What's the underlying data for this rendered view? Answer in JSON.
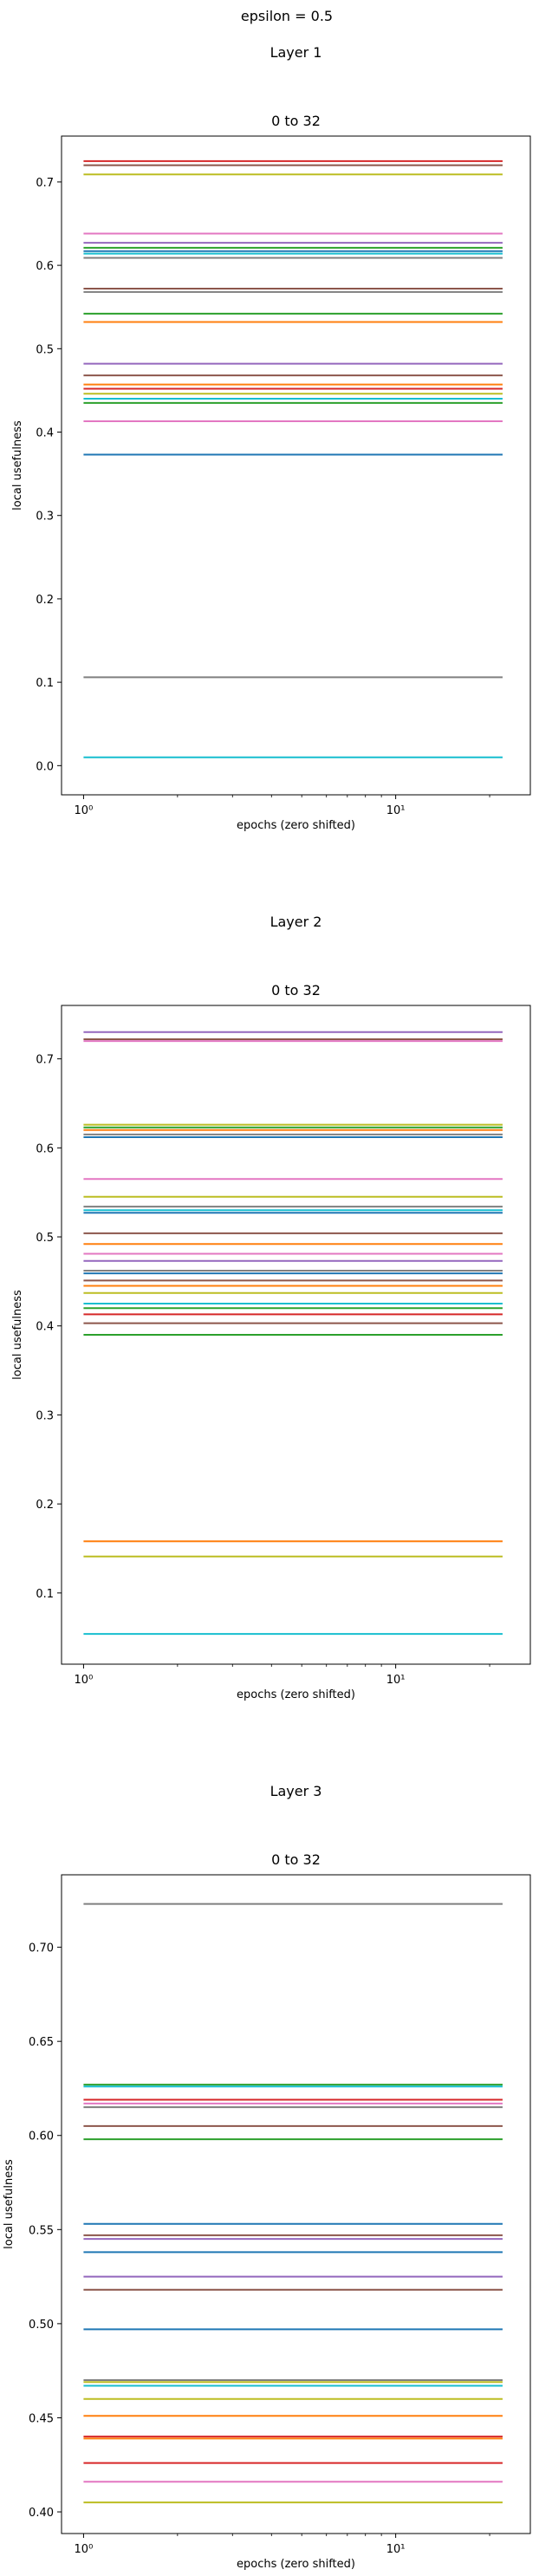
{
  "figure": {
    "suptitle": "epsilon = 0.5"
  },
  "chart_data": [
    {
      "type": "line",
      "panel_title": "Layer 1",
      "title": "0 to 32",
      "xlabel": "epochs (zero shifted)",
      "ylabel": "local usefulness",
      "x_scale": "log",
      "xlim": [
        0.85,
        27
      ],
      "xticks": [
        1,
        10
      ],
      "xtick_labels": [
        "10⁰",
        "10¹"
      ],
      "x": [
        1,
        22
      ],
      "ylim": [
        -0.035,
        0.755
      ],
      "yticks": [
        0.0,
        0.1,
        0.2,
        0.3,
        0.4,
        0.5,
        0.6,
        0.7
      ],
      "ytick_labels": [
        "0.0",
        "0.1",
        "0.2",
        "0.3",
        "0.4",
        "0.5",
        "0.6",
        "0.7"
      ],
      "grid": false,
      "legend": "none",
      "series": [
        {
          "values": [
            0.725,
            0.725
          ],
          "color": "#d62728"
        },
        {
          "values": [
            0.72,
            0.72
          ],
          "color": "#8c564b"
        },
        {
          "values": [
            0.709,
            0.709
          ],
          "color": "#bcbd22"
        },
        {
          "values": [
            0.638,
            0.638
          ],
          "color": "#e377c2"
        },
        {
          "values": [
            0.627,
            0.627
          ],
          "color": "#9467bd"
        },
        {
          "values": [
            0.621,
            0.621
          ],
          "color": "#2ca02c"
        },
        {
          "values": [
            0.617,
            0.617
          ],
          "color": "#1f77b4"
        },
        {
          "values": [
            0.614,
            0.614
          ],
          "color": "#17becf"
        },
        {
          "values": [
            0.609,
            0.609
          ],
          "color": "#7f7f7f"
        },
        {
          "values": [
            0.572,
            0.572
          ],
          "color": "#8c564b"
        },
        {
          "values": [
            0.568,
            0.568
          ],
          "color": "#7f7f7f"
        },
        {
          "values": [
            0.542,
            0.542
          ],
          "color": "#2ca02c"
        },
        {
          "values": [
            0.532,
            0.532
          ],
          "color": "#ff7f0e"
        },
        {
          "values": [
            0.482,
            0.482
          ],
          "color": "#9467bd"
        },
        {
          "values": [
            0.468,
            0.468
          ],
          "color": "#8c564b"
        },
        {
          "values": [
            0.457,
            0.457
          ],
          "color": "#ff7f0e"
        },
        {
          "values": [
            0.452,
            0.452
          ],
          "color": "#d62728"
        },
        {
          "values": [
            0.446,
            0.446
          ],
          "color": "#bcbd22"
        },
        {
          "values": [
            0.44,
            0.44
          ],
          "color": "#17becf"
        },
        {
          "values": [
            0.435,
            0.435
          ],
          "color": "#2ca02c"
        },
        {
          "values": [
            0.413,
            0.413
          ],
          "color": "#e377c2"
        },
        {
          "values": [
            0.373,
            0.373
          ],
          "color": "#1f77b4"
        },
        {
          "values": [
            0.106,
            0.106
          ],
          "color": "#7f7f7f"
        },
        {
          "values": [
            0.01,
            0.01
          ],
          "color": "#17becf"
        }
      ]
    },
    {
      "type": "line",
      "panel_title": "Layer 2",
      "title": "0 to 32",
      "xlabel": "epochs (zero shifted)",
      "ylabel": "local usefulness",
      "x_scale": "log",
      "xlim": [
        0.85,
        27
      ],
      "xticks": [
        1,
        10
      ],
      "xtick_labels": [
        "10⁰",
        "10¹"
      ],
      "x": [
        1,
        22
      ],
      "ylim": [
        0.02,
        0.76
      ],
      "yticks": [
        0.1,
        0.2,
        0.3,
        0.4,
        0.5,
        0.6,
        0.7
      ],
      "ytick_labels": [
        "0.1",
        "0.2",
        "0.3",
        "0.4",
        "0.5",
        "0.6",
        "0.7"
      ],
      "grid": false,
      "legend": "none",
      "series": [
        {
          "values": [
            0.73,
            0.73
          ],
          "color": "#9467bd"
        },
        {
          "values": [
            0.722,
            0.722
          ],
          "color": "#8c564b"
        },
        {
          "values": [
            0.72,
            0.72
          ],
          "color": "#e377c2"
        },
        {
          "values": [
            0.626,
            0.626
          ],
          "color": "#bcbd22"
        },
        {
          "values": [
            0.623,
            0.623
          ],
          "color": "#2ca02c"
        },
        {
          "values": [
            0.62,
            0.62
          ],
          "color": "#ff7f0e"
        },
        {
          "values": [
            0.615,
            0.615
          ],
          "color": "#7f7f7f"
        },
        {
          "values": [
            0.612,
            0.612
          ],
          "color": "#1f77b4"
        },
        {
          "values": [
            0.565,
            0.565
          ],
          "color": "#e377c2"
        },
        {
          "values": [
            0.545,
            0.545
          ],
          "color": "#bcbd22"
        },
        {
          "values": [
            0.534,
            0.534
          ],
          "color": "#7f7f7f"
        },
        {
          "values": [
            0.53,
            0.53
          ],
          "color": "#17becf"
        },
        {
          "values": [
            0.527,
            0.527
          ],
          "color": "#1f77b4"
        },
        {
          "values": [
            0.504,
            0.504
          ],
          "color": "#8c564b"
        },
        {
          "values": [
            0.492,
            0.492
          ],
          "color": "#ff7f0e"
        },
        {
          "values": [
            0.481,
            0.481
          ],
          "color": "#e377c2"
        },
        {
          "values": [
            0.473,
            0.473
          ],
          "color": "#9467bd"
        },
        {
          "values": [
            0.462,
            0.462
          ],
          "color": "#7f7f7f"
        },
        {
          "values": [
            0.459,
            0.459
          ],
          "color": "#1f77b4"
        },
        {
          "values": [
            0.451,
            0.451
          ],
          "color": "#8c564b"
        },
        {
          "values": [
            0.445,
            0.445
          ],
          "color": "#ff7f0e"
        },
        {
          "values": [
            0.437,
            0.437
          ],
          "color": "#bcbd22"
        },
        {
          "values": [
            0.425,
            0.425
          ],
          "color": "#17becf"
        },
        {
          "values": [
            0.42,
            0.42
          ],
          "color": "#2ca02c"
        },
        {
          "values": [
            0.413,
            0.413
          ],
          "color": "#d62728"
        },
        {
          "values": [
            0.403,
            0.403
          ],
          "color": "#8c564b"
        },
        {
          "values": [
            0.39,
            0.39
          ],
          "color": "#2ca02c"
        },
        {
          "values": [
            0.158,
            0.158
          ],
          "color": "#ff7f0e"
        },
        {
          "values": [
            0.141,
            0.141
          ],
          "color": "#bcbd22"
        },
        {
          "values": [
            0.054,
            0.054
          ],
          "color": "#17becf"
        }
      ]
    },
    {
      "type": "line",
      "panel_title": "Layer 3",
      "title": "0 to 32",
      "xlabel": "epochs (zero shifted)",
      "ylabel": "local usefulness",
      "x_scale": "log",
      "xlim": [
        0.85,
        27
      ],
      "xticks": [
        1,
        10
      ],
      "xtick_labels": [
        "10⁰",
        "10¹"
      ],
      "x": [
        1,
        22
      ],
      "ylim": [
        0.3885,
        0.7385
      ],
      "yticks": [
        0.4,
        0.45,
        0.5,
        0.55,
        0.6,
        0.65,
        0.7
      ],
      "ytick_labels": [
        "0.40",
        "0.45",
        "0.50",
        "0.55",
        "0.60",
        "0.65",
        "0.70"
      ],
      "grid": false,
      "legend": "none",
      "series": [
        {
          "values": [
            0.723,
            0.723
          ],
          "color": "#7f7f7f"
        },
        {
          "values": [
            0.627,
            0.627
          ],
          "color": "#2ca02c"
        },
        {
          "values": [
            0.626,
            0.626
          ],
          "color": "#17becf"
        },
        {
          "values": [
            0.619,
            0.619
          ],
          "color": "#d62728"
        },
        {
          "values": [
            0.617,
            0.617
          ],
          "color": "#e377c2"
        },
        {
          "values": [
            0.615,
            0.615
          ],
          "color": "#7f7f7f"
        },
        {
          "values": [
            0.605,
            0.605
          ],
          "color": "#8c564b"
        },
        {
          "values": [
            0.598,
            0.598
          ],
          "color": "#2ca02c"
        },
        {
          "values": [
            0.553,
            0.553
          ],
          "color": "#1f77b4"
        },
        {
          "values": [
            0.547,
            0.547
          ],
          "color": "#8c564b"
        },
        {
          "values": [
            0.545,
            0.545
          ],
          "color": "#9467bd"
        },
        {
          "values": [
            0.538,
            0.538
          ],
          "color": "#1f77b4"
        },
        {
          "values": [
            0.525,
            0.525
          ],
          "color": "#9467bd"
        },
        {
          "values": [
            0.518,
            0.518
          ],
          "color": "#8c564b"
        },
        {
          "values": [
            0.497,
            0.497
          ],
          "color": "#1f77b4"
        },
        {
          "values": [
            0.47,
            0.47
          ],
          "color": "#7f7f7f"
        },
        {
          "values": [
            0.469,
            0.469
          ],
          "color": "#bcbd22"
        },
        {
          "values": [
            0.467,
            0.467
          ],
          "color": "#17becf"
        },
        {
          "values": [
            0.46,
            0.46
          ],
          "color": "#bcbd22"
        },
        {
          "values": [
            0.451,
            0.451
          ],
          "color": "#ff7f0e"
        },
        {
          "values": [
            0.44,
            0.44
          ],
          "color": "#d62728"
        },
        {
          "values": [
            0.439,
            0.439
          ],
          "color": "#ff7f0e"
        },
        {
          "values": [
            0.426,
            0.426
          ],
          "color": "#d62728"
        },
        {
          "values": [
            0.416,
            0.416
          ],
          "color": "#e377c2"
        },
        {
          "values": [
            0.405,
            0.405
          ],
          "color": "#bcbd22"
        }
      ]
    }
  ]
}
